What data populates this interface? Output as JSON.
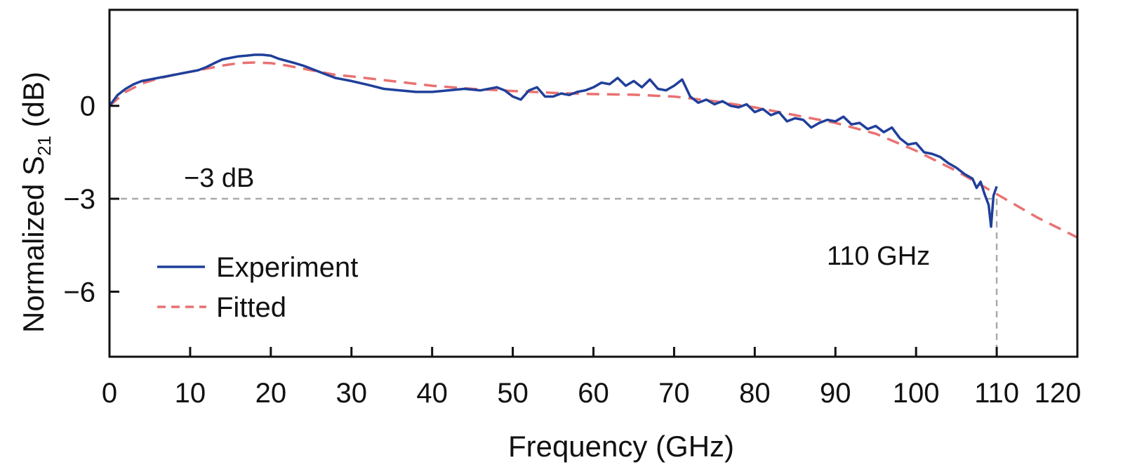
{
  "chart_data": {
    "type": "line",
    "xlabel": "Frequency (GHz)",
    "ylabel": {
      "prefix": "Normalized S",
      "subscript": "21",
      "suffix": " (dB)"
    },
    "xlim": [
      0,
      120
    ],
    "ylim": [
      -8.1,
      3.1
    ],
    "xticks": [
      0,
      10,
      20,
      30,
      40,
      50,
      60,
      70,
      80,
      90,
      100,
      110,
      120
    ],
    "yticks": [
      0,
      -3,
      -6
    ],
    "ytick_labels": [
      "0",
      "−3",
      "−6"
    ],
    "grid": false,
    "legend_position": "bottom-left",
    "colors": {
      "experiment": "#1f3f9a",
      "fitted": "#e97171",
      "reference": "#aaaaaa"
    },
    "series": [
      {
        "name": "Experiment",
        "style": "solid",
        "x": [
          0,
          1,
          2,
          3,
          4,
          5,
          6,
          7,
          8,
          9,
          10,
          11,
          12,
          13,
          14,
          15,
          16,
          17,
          18,
          19,
          20,
          21,
          22,
          23,
          24,
          25,
          26,
          27,
          28,
          29,
          30,
          32,
          34,
          36,
          38,
          40,
          42,
          44,
          46,
          48,
          49,
          50,
          51,
          52,
          53,
          54,
          55,
          56,
          57,
          58,
          59,
          60,
          61,
          62,
          63,
          64,
          65,
          66,
          67,
          68,
          69,
          70,
          71,
          72,
          73,
          74,
          75,
          76,
          77,
          78,
          79,
          80,
          81,
          82,
          83,
          84,
          85,
          86,
          87,
          88,
          89,
          90,
          91,
          92,
          93,
          94,
          95,
          96,
          97,
          98,
          99,
          100,
          101,
          102,
          103,
          104,
          105,
          106,
          107,
          107.5,
          108,
          108.5,
          109,
          109.3,
          109.6,
          110
        ],
        "y": [
          0,
          0.35,
          0.55,
          0.7,
          0.8,
          0.85,
          0.9,
          0.95,
          1.0,
          1.05,
          1.1,
          1.15,
          1.25,
          1.38,
          1.5,
          1.55,
          1.6,
          1.62,
          1.65,
          1.65,
          1.62,
          1.52,
          1.45,
          1.38,
          1.3,
          1.2,
          1.1,
          1.0,
          0.9,
          0.85,
          0.8,
          0.68,
          0.55,
          0.5,
          0.45,
          0.45,
          0.5,
          0.55,
          0.5,
          0.6,
          0.5,
          0.3,
          0.2,
          0.5,
          0.6,
          0.3,
          0.3,
          0.4,
          0.35,
          0.45,
          0.5,
          0.6,
          0.75,
          0.7,
          0.9,
          0.65,
          0.8,
          0.6,
          0.85,
          0.55,
          0.5,
          0.65,
          0.85,
          0.3,
          0.1,
          0.2,
          0.05,
          0.15,
          0.0,
          -0.05,
          0.05,
          -0.2,
          -0.1,
          -0.3,
          -0.2,
          -0.5,
          -0.4,
          -0.45,
          -0.7,
          -0.55,
          -0.45,
          -0.5,
          -0.35,
          -0.6,
          -0.55,
          -0.75,
          -0.65,
          -0.85,
          -0.7,
          -1.05,
          -1.25,
          -1.2,
          -1.5,
          -1.55,
          -1.65,
          -1.85,
          -2.0,
          -2.2,
          -2.35,
          -2.65,
          -2.45,
          -2.85,
          -3.2,
          -3.9,
          -2.9,
          -2.6
        ]
      },
      {
        "name": "Fitted",
        "style": "dashed",
        "x": [
          0,
          2,
          4,
          6,
          8,
          10,
          12,
          14,
          16,
          18,
          20,
          22,
          24,
          26,
          28,
          30,
          35,
          40,
          45,
          50,
          55,
          60,
          65,
          70,
          75,
          80,
          85,
          90,
          95,
          100,
          105,
          110,
          115,
          120
        ],
        "y": [
          0,
          0.45,
          0.72,
          0.88,
          1.0,
          1.1,
          1.2,
          1.3,
          1.38,
          1.4,
          1.38,
          1.3,
          1.2,
          1.1,
          1.0,
          0.95,
          0.8,
          0.65,
          0.55,
          0.48,
          0.42,
          0.38,
          0.36,
          0.3,
          0.15,
          -0.05,
          -0.3,
          -0.55,
          -0.9,
          -1.45,
          -2.1,
          -2.85,
          -3.6,
          -4.25
        ]
      }
    ],
    "reference_lines": {
      "y_value": -3,
      "x_value": 110
    },
    "annotations": {
      "db_label": "−3 dB",
      "freq_label": "110 GHz"
    },
    "legend": {
      "experiment_label": "Experiment",
      "fitted_label": "Fitted"
    }
  }
}
